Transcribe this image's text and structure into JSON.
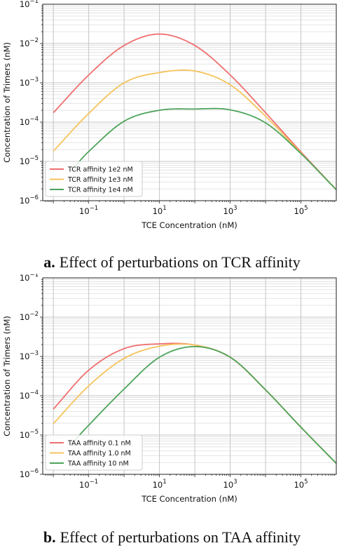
{
  "chart_data": [
    {
      "type": "line",
      "xlabel": "TCE Concentration (nM)",
      "ylabel": "Concentration of Trimers (nM)",
      "x_scale": "log",
      "y_scale": "log",
      "xlim": [
        0.00501,
        1000000
      ],
      "ylim": [
        1e-06,
        0.1
      ],
      "x_ticks": [
        {
          "value": 0.1,
          "base": "10",
          "exp": "−1"
        },
        {
          "value": 10,
          "base": "10",
          "exp": "1"
        },
        {
          "value": 1000,
          "base": "10",
          "exp": "3"
        },
        {
          "value": 100000,
          "base": "10",
          "exp": "5"
        }
      ],
      "y_ticks": [
        {
          "value": 1e-06,
          "base": "10",
          "exp": "−6"
        },
        {
          "value": 1e-05,
          "base": "10",
          "exp": "−5"
        },
        {
          "value": 0.0001,
          "base": "10",
          "exp": "−4"
        },
        {
          "value": 0.001,
          "base": "10",
          "exp": "−3"
        },
        {
          "value": 0.01,
          "base": "10",
          "exp": "−2"
        },
        {
          "value": 0.1,
          "base": "10",
          "exp": "−1"
        }
      ],
      "grid": true,
      "legend_position": "lower-left",
      "series": [
        {
          "name": "TCR affinity 1e2 nM",
          "color": "#ef6f6f",
          "x": [
            0.01,
            0.1,
            1,
            10,
            100,
            1000,
            10000,
            100000,
            1000000
          ],
          "y": [
            0.000173,
            0.00158,
            0.0089,
            0.0174,
            0.0089,
            0.00158,
            0.000173,
            1.74e-05,
            1.9e-06
          ]
        },
        {
          "name": "TCR affinity 1e3 nM",
          "color": "#f6c35c",
          "x": [
            0.01,
            0.1,
            1,
            10,
            100,
            1000,
            10000,
            100000,
            1000000
          ],
          "y": [
            1.82e-05,
            0.000166,
            0.000998,
            0.00182,
            0.00199,
            0.00089,
            0.000141,
            1.63e-05,
            1.9e-06
          ]
        },
        {
          "name": "TCR affinity 1e4 nM",
          "color": "#4da35a",
          "x": [
            0.03,
            0.1,
            1,
            10,
            100,
            1000,
            10000,
            100000,
            1000000
          ],
          "y": [
            5.5e-06,
            1.78e-05,
            0.000105,
            0.0002,
            0.000215,
            0.000205,
            9.55e-05,
            1.58e-05,
            1.9e-06
          ]
        }
      ]
    },
    {
      "type": "line",
      "xlabel": "TCE Concentration (nM)",
      "ylabel": "Concentration of Trimers (nM)",
      "x_scale": "log",
      "y_scale": "log",
      "xlim": [
        0.00501,
        1000000
      ],
      "ylim": [
        1e-06,
        0.1
      ],
      "x_ticks": [
        {
          "value": 0.1,
          "base": "10",
          "exp": "−1"
        },
        {
          "value": 10,
          "base": "10",
          "exp": "1"
        },
        {
          "value": 1000,
          "base": "10",
          "exp": "3"
        },
        {
          "value": 100000,
          "base": "10",
          "exp": "5"
        }
      ],
      "y_ticks": [
        {
          "value": 1e-06,
          "base": "10",
          "exp": "−6"
        },
        {
          "value": 1e-05,
          "base": "10",
          "exp": "−5"
        },
        {
          "value": 0.0001,
          "base": "10",
          "exp": "−4"
        },
        {
          "value": 0.001,
          "base": "10",
          "exp": "−3"
        },
        {
          "value": 0.01,
          "base": "10",
          "exp": "−2"
        },
        {
          "value": 0.1,
          "base": "10",
          "exp": "−1"
        }
      ],
      "grid": true,
      "legend_position": "lower-left",
      "series": [
        {
          "name": "TAA affinity 0.1 nM",
          "color": "#ef6f6f",
          "x": [
            0.01,
            0.1,
            1,
            10,
            100,
            1000,
            10000,
            100000,
            1000000
          ],
          "y": [
            4.57e-05,
            0.000447,
            0.00158,
            0.00209,
            0.00195,
            0.000955,
            0.000141,
            1.58e-05,
            1.9e-06
          ]
        },
        {
          "name": "TAA affinity 1.0 nM",
          "color": "#f6c35c",
          "x": [
            0.01,
            0.1,
            1,
            10,
            100,
            1000,
            10000,
            100000,
            1000000
          ],
          "y": [
            1.95e-05,
            0.000178,
            0.000891,
            0.00182,
            0.00195,
            0.000955,
            0.000141,
            1.58e-05,
            1.9e-06
          ]
        },
        {
          "name": "TAA affinity 10  nM",
          "color": "#4da35a",
          "x": [
            0.03,
            0.1,
            1,
            10,
            100,
            1000,
            10000,
            100000,
            1000000
          ],
          "y": [
            5.5e-06,
            1.78e-05,
            0.000148,
            0.000955,
            0.00178,
            0.000955,
            0.000141,
            1.58e-05,
            1.9e-06
          ]
        }
      ]
    }
  ],
  "captions": [
    {
      "label": "a.",
      "text": "Effect of perturbations on TCR affinity"
    },
    {
      "label": "b.",
      "text": "Effect of perturbations on TAA affinity"
    }
  ]
}
